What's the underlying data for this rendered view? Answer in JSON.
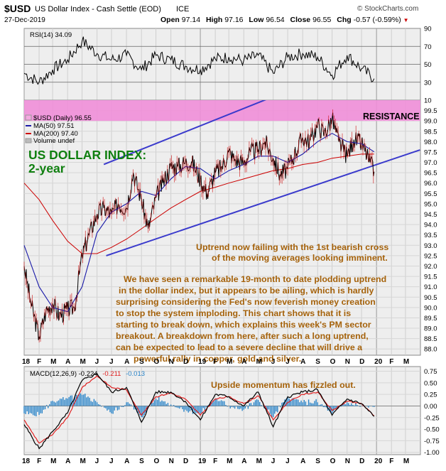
{
  "header": {
    "symbol": "$USD",
    "name": "US Dollar Index - Cash Settle (EOD)",
    "exchange": "ICE",
    "watermark": "© StockCharts.com",
    "date": "27-Dec-2019",
    "open_label": "Open",
    "open": "97.14",
    "high_label": "High",
    "high": "97.16",
    "low_label": "Low",
    "low": "96.54",
    "close_label": "Close",
    "close": "96.55",
    "chg_label": "Chg",
    "chg": "-0.57 (-0.59%)",
    "chg_arrow": "▼"
  },
  "colors": {
    "price": "#000000",
    "ma50": "#1a1aa8",
    "ma200": "#cc0000",
    "channel": "#3a3acc",
    "resistance": "#f08ed8",
    "panel_bg": "#eeeeee",
    "annotation": "#a5620b",
    "title_green": "#0f7f0f",
    "macd": "#000000",
    "signal": "#e02020",
    "histogram": "#2a84c8"
  },
  "chart_data": [
    {
      "type": "line",
      "panel": "RSI",
      "legend": "RSI(14) 34.09",
      "ylim": [
        10,
        90
      ],
      "yticks": [
        "90",
        "70",
        "50",
        "30",
        "10"
      ],
      "reference_lines": [
        70,
        50,
        30
      ],
      "series": [
        {
          "name": "RSI(14)",
          "x": [
            "2018-01",
            "2018-02",
            "2018-03",
            "2018-04",
            "2018-05",
            "2018-06",
            "2018-07",
            "2018-08",
            "2018-09",
            "2018-10",
            "2018-11",
            "2018-12",
            "2019-01",
            "2019-02",
            "2019-03",
            "2019-04",
            "2019-05",
            "2019-06",
            "2019-07",
            "2019-08",
            "2019-09",
            "2019-10",
            "2019-11",
            "2019-12",
            "2019-12-27"
          ],
          "values": [
            40,
            30,
            44,
            55,
            76,
            62,
            55,
            60,
            44,
            60,
            55,
            48,
            44,
            56,
            58,
            54,
            60,
            40,
            58,
            62,
            58,
            38,
            60,
            45,
            34
          ]
        }
      ]
    },
    {
      "type": "line",
      "panel": "Price",
      "legend": [
        "$USD (Daily) 96.55",
        "MA(50) 97.51",
        "MA(200) 97.40",
        "Volume undef"
      ],
      "ylim": [
        87.7,
        100.0
      ],
      "yticks": [
        "99.5",
        "99.0",
        "98.5",
        "98.0",
        "97.5",
        "97.0",
        "96.5",
        "96.0",
        "95.5",
        "95.0",
        "94.5",
        "94.0",
        "93.5",
        "93.0",
        "92.5",
        "92.0",
        "91.5",
        "91.0",
        "90.5",
        "90.0",
        "89.5",
        "89.0",
        "88.5",
        "88.0"
      ],
      "xticks": [
        "18",
        "F",
        "M",
        "A",
        "M",
        "J",
        "J",
        "A",
        "S",
        "O",
        "N",
        "D",
        "19",
        "F",
        "M",
        "A",
        "M",
        "J",
        "J",
        "A",
        "S",
        "O",
        "N",
        "D",
        "20",
        "F",
        "M"
      ],
      "resistance_band": {
        "label": "RESISTANCE",
        "from": 99.0,
        "to": 100.0
      },
      "channel": {
        "upper": [
          {
            "x": "2018-06-15",
            "y": 96.9
          },
          {
            "x": "2020-03-31",
            "y": 103.0
          }
        ],
        "lower": [
          {
            "x": "2018-06-20",
            "y": 92.5
          },
          {
            "x": "2020-03-31",
            "y": 97.6
          }
        ]
      },
      "series": [
        {
          "name": "$USD (Daily)",
          "x": [
            "2018-01-01",
            "2018-01-15",
            "2018-02-01",
            "2018-02-15",
            "2018-03-01",
            "2018-03-15",
            "2018-04-01",
            "2018-04-15",
            "2018-05-01",
            "2018-05-15",
            "2018-06-01",
            "2018-06-15",
            "2018-07-01",
            "2018-07-15",
            "2018-08-01",
            "2018-08-15",
            "2018-09-01",
            "2018-09-15",
            "2018-10-01",
            "2018-10-15",
            "2018-11-01",
            "2018-11-15",
            "2018-12-01",
            "2018-12-15",
            "2019-01-01",
            "2019-01-15",
            "2019-02-01",
            "2019-02-15",
            "2019-03-01",
            "2019-03-15",
            "2019-04-01",
            "2019-04-15",
            "2019-05-01",
            "2019-05-15",
            "2019-06-01",
            "2019-06-15",
            "2019-07-01",
            "2019-07-15",
            "2019-08-01",
            "2019-08-15",
            "2019-09-01",
            "2019-09-15",
            "2019-10-01",
            "2019-10-15",
            "2019-11-01",
            "2019-11-15",
            "2019-12-01",
            "2019-12-15",
            "2019-12-27"
          ],
          "values": [
            92.0,
            90.2,
            88.6,
            89.8,
            90.2,
            89.6,
            89.9,
            90.0,
            92.5,
            93.5,
            94.5,
            94.8,
            94.5,
            95.0,
            94.8,
            96.5,
            95.2,
            93.8,
            95.3,
            96.0,
            96.8,
            96.8,
            97.0,
            97.0,
            96.2,
            95.5,
            96.5,
            96.8,
            97.5,
            97.1,
            97.0,
            97.5,
            97.6,
            98.0,
            97.2,
            96.4,
            96.7,
            97.4,
            98.2,
            98.0,
            98.8,
            98.4,
            99.1,
            98.0,
            97.3,
            98.1,
            97.9,
            97.2,
            96.55
          ]
        },
        {
          "name": "MA(50)",
          "x": [
            "2018-01-01",
            "2018-02-01",
            "2018-03-01",
            "2018-04-01",
            "2018-05-01",
            "2018-06-01",
            "2018-07-01",
            "2018-08-01",
            "2018-09-01",
            "2018-10-01",
            "2018-11-01",
            "2018-12-01",
            "2019-01-01",
            "2019-02-01",
            "2019-03-01",
            "2019-04-01",
            "2019-05-01",
            "2019-06-01",
            "2019-07-01",
            "2019-08-01",
            "2019-09-01",
            "2019-10-01",
            "2019-11-01",
            "2019-12-01",
            "2019-12-27"
          ],
          "values": [
            93.0,
            91.0,
            90.0,
            89.8,
            91.0,
            93.6,
            94.6,
            95.0,
            95.6,
            95.4,
            96.2,
            96.8,
            96.7,
            96.2,
            96.6,
            96.9,
            97.3,
            97.3,
            97.0,
            97.4,
            98.0,
            98.4,
            98.0,
            97.9,
            97.51
          ]
        },
        {
          "name": "MA(200)",
          "x": [
            "2018-01-01",
            "2018-02-01",
            "2018-03-01",
            "2018-04-01",
            "2018-05-01",
            "2018-06-01",
            "2018-07-01",
            "2018-08-01",
            "2018-09-01",
            "2018-10-01",
            "2018-11-01",
            "2018-12-01",
            "2019-01-01",
            "2019-02-01",
            "2019-03-01",
            "2019-04-01",
            "2019-05-01",
            "2019-06-01",
            "2019-07-01",
            "2019-08-01",
            "2019-09-01",
            "2019-10-01",
            "2019-11-01",
            "2019-12-01",
            "2019-12-27"
          ],
          "values": [
            96.0,
            95.2,
            94.2,
            93.2,
            92.6,
            92.6,
            92.9,
            93.3,
            93.8,
            94.3,
            94.8,
            95.2,
            95.6,
            95.8,
            96.0,
            96.2,
            96.4,
            96.6,
            96.7,
            96.9,
            97.0,
            97.2,
            97.3,
            97.4,
            97.4
          ]
        }
      ]
    },
    {
      "type": "line",
      "panel": "MACD",
      "legend": {
        "label": "MACD(12,26,9)",
        "macd": "-0.224",
        "signal": "-0.211",
        "hist": "-0.013"
      },
      "ylim": [
        -1.05,
        0.85
      ],
      "yticks": [
        "0.75",
        "0.50",
        "0.25",
        "0.00",
        "-0.25",
        "-0.50",
        "-0.75",
        "-1.00"
      ],
      "xticks": [
        "18",
        "F",
        "M",
        "A",
        "M",
        "J",
        "J",
        "A",
        "S",
        "O",
        "N",
        "D",
        "19",
        "F",
        "M",
        "A",
        "M",
        "J",
        "J",
        "A",
        "S",
        "O",
        "N",
        "D",
        "20",
        "F",
        "M"
      ],
      "series": [
        {
          "name": "MACD",
          "x": [
            "2018-01",
            "2018-02",
            "2018-03",
            "2018-04",
            "2018-05",
            "2018-06",
            "2018-07",
            "2018-08",
            "2018-09",
            "2018-10",
            "2018-11",
            "2018-12",
            "2019-01",
            "2019-02",
            "2019-03",
            "2019-04",
            "2019-05",
            "2019-06",
            "2019-07",
            "2019-08",
            "2019-09",
            "2019-10",
            "2019-11",
            "2019-12",
            "2019-12-27"
          ],
          "values": [
            -0.4,
            -0.92,
            -0.55,
            -0.15,
            0.55,
            0.7,
            0.3,
            0.4,
            -0.35,
            0.3,
            0.3,
            0.1,
            -0.3,
            0.25,
            0.2,
            0.0,
            0.3,
            -0.45,
            0.2,
            0.3,
            0.35,
            -0.2,
            0.15,
            0.05,
            -0.224
          ]
        },
        {
          "name": "Signal",
          "x": [
            "2018-01",
            "2018-02",
            "2018-03",
            "2018-04",
            "2018-05",
            "2018-06",
            "2018-07",
            "2018-08",
            "2018-09",
            "2018-10",
            "2018-11",
            "2018-12",
            "2019-01",
            "2019-02",
            "2019-03",
            "2019-04",
            "2019-05",
            "2019-06",
            "2019-07",
            "2019-08",
            "2019-09",
            "2019-10",
            "2019-11",
            "2019-12",
            "2019-12-27"
          ],
          "values": [
            -0.3,
            -0.8,
            -0.62,
            -0.25,
            0.4,
            0.65,
            0.4,
            0.35,
            -0.2,
            0.2,
            0.28,
            0.15,
            -0.2,
            0.15,
            0.2,
            0.05,
            0.22,
            -0.3,
            0.08,
            0.25,
            0.3,
            -0.1,
            0.1,
            0.05,
            -0.211
          ]
        }
      ]
    }
  ],
  "annotations": {
    "title_line1": "US DOLLAR INDEX:",
    "title_line2": "2-year",
    "resistance": "RESISTANCE",
    "uptrend_line1": "Uptrend now failing with the 1st bearish cross",
    "uptrend_line2": "of the moving averages looking imminent.",
    "body_lines": [
      "We have seen a remarkable 19-month to date plodding uptrend",
      "in the dollar index, but it appears to be ailing, which is hardly",
      "surprising considering the Fed's now feverish money creation",
      "to stop the system imploding. This chart shows that it is",
      "starting to break down, which explains this week's PM sector",
      "breakout. A breakdown from here, after such a long uptrend,",
      "can be expected to lead to a severe decline that will drive a",
      "powerful rally in copper, gold and silver."
    ],
    "macd_note": "Upside momentum has fizzled out."
  }
}
